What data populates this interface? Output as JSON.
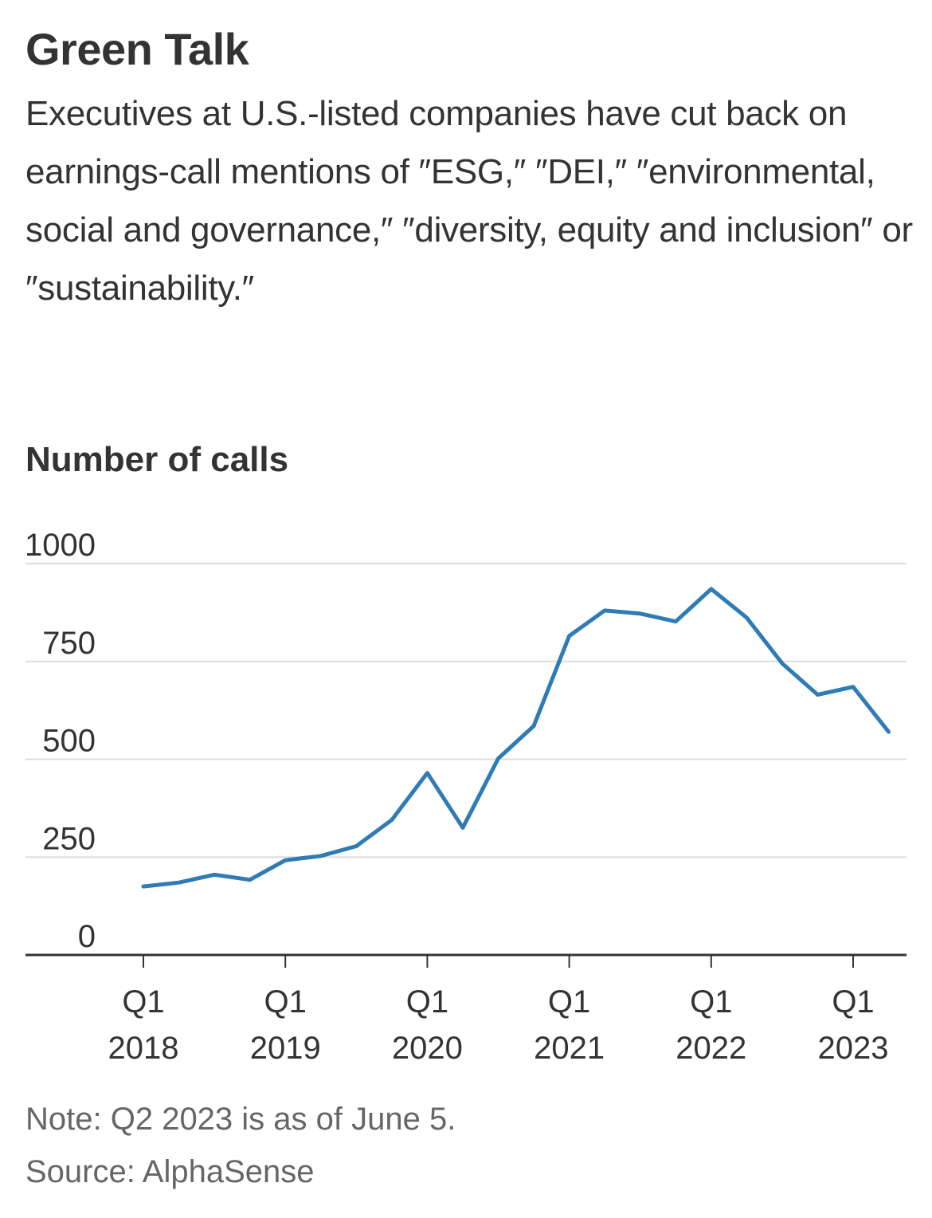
{
  "header": {
    "title": "Green Talk",
    "subtitle": "Executives at U.S.-listed companies have cut back on earnings-call mentions of ″ESG,″ ″DEI,″ ″environmental, social and governance,″ ″diversity, equity and inclusion″ or ″sustainability.″"
  },
  "footer": {
    "note": "Note: Q2 2023 is as of June 5.",
    "source": "Source: AlphaSense"
  },
  "chart_data": {
    "type": "line",
    "title": "Green Talk",
    "ylabel": "Number of calls",
    "xlabel": "",
    "ylim": [
      0,
      1000
    ],
    "yticks": [
      0,
      250,
      500,
      750,
      1000
    ],
    "xtick_labels": [
      {
        "index": 0,
        "quarter": "Q1",
        "year": "2018"
      },
      {
        "index": 4,
        "quarter": "Q1",
        "year": "2019"
      },
      {
        "index": 8,
        "quarter": "Q1",
        "year": "2020"
      },
      {
        "index": 12,
        "quarter": "Q1",
        "year": "2021"
      },
      {
        "index": 16,
        "quarter": "Q1",
        "year": "2022"
      },
      {
        "index": 20,
        "quarter": "Q1",
        "year": "2023"
      }
    ],
    "x": [
      "Q1 2018",
      "Q2 2018",
      "Q3 2018",
      "Q4 2018",
      "Q1 2019",
      "Q2 2019",
      "Q3 2019",
      "Q4 2019",
      "Q1 2020",
      "Q2 2020",
      "Q3 2020",
      "Q4 2020",
      "Q1 2021",
      "Q2 2021",
      "Q3 2021",
      "Q4 2021",
      "Q1 2022",
      "Q2 2022",
      "Q3 2022",
      "Q4 2022",
      "Q1 2023",
      "Q2 2023"
    ],
    "series": [
      {
        "values": [
          175,
          185,
          205,
          192,
          242,
          253,
          278,
          345,
          465,
          325,
          502,
          585,
          815,
          880,
          872,
          852,
          935,
          862,
          745,
          665,
          685,
          570
        ],
        "color": "#2e7bb5"
      }
    ],
    "grid": true,
    "gridline_color": "#dddddd",
    "axis_color": "#333333"
  }
}
